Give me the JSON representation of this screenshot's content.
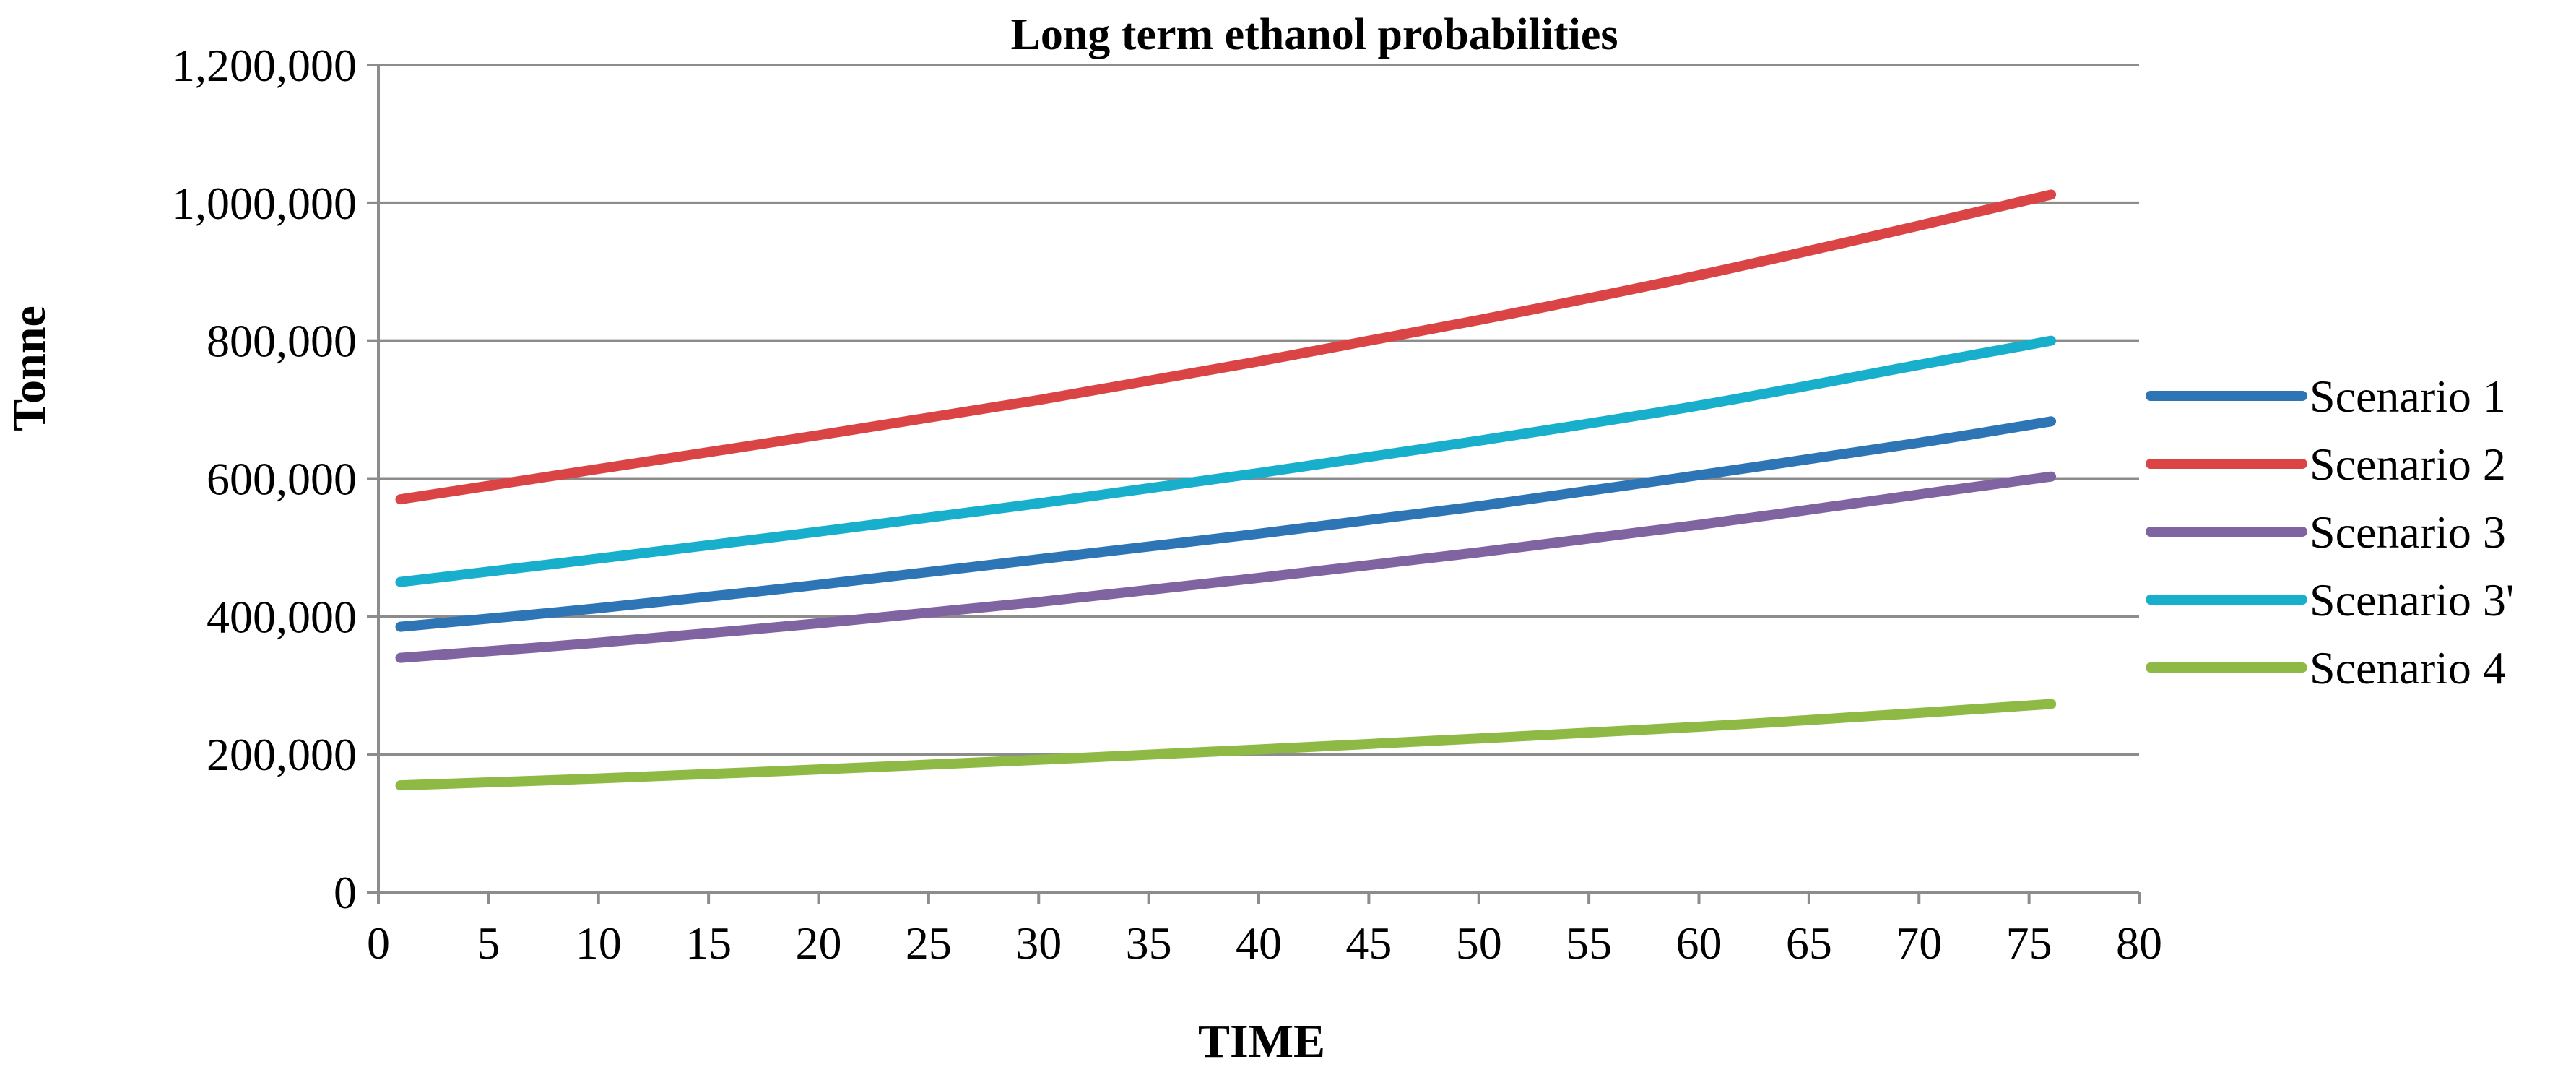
{
  "chart_data": {
    "type": "line",
    "title": "Long term ethanol probabilities",
    "xlabel": "TIME",
    "ylabel": "Tonne",
    "xlim": [
      0,
      80
    ],
    "ylim": [
      0,
      1200000
    ],
    "x_ticks": [
      0,
      5,
      10,
      15,
      20,
      25,
      30,
      35,
      40,
      45,
      50,
      55,
      60,
      65,
      70,
      75,
      80
    ],
    "x_tick_labels": [
      "0",
      "5",
      "10",
      "15",
      "20",
      "25",
      "30",
      "35",
      "40",
      "45",
      "50",
      "55",
      "60",
      "65",
      "70",
      "75",
      "80"
    ],
    "y_ticks": [
      0,
      200000,
      400000,
      600000,
      800000,
      1000000,
      1200000
    ],
    "y_tick_labels": [
      "0",
      "200,000",
      "400,000",
      "600,000",
      "800,000",
      "1,000,000",
      "1,200,000"
    ],
    "grid": "horizontal",
    "legend_position": "right",
    "series": [
      {
        "name": "Scenario 1",
        "color": "#2E75B6",
        "x": [
          1,
          10,
          20,
          30,
          40,
          50,
          60,
          70,
          76
        ],
        "values": [
          385000,
          412000,
          446000,
          483000,
          520000,
          560000,
          605000,
          652000,
          683000
        ]
      },
      {
        "name": "Scenario 2",
        "color": "#DA4444",
        "x": [
          1,
          10,
          20,
          30,
          40,
          50,
          60,
          70,
          76
        ],
        "values": [
          570000,
          614000,
          663000,
          714000,
          770000,
          830000,
          895000,
          967000,
          1012000
        ]
      },
      {
        "name": "Scenario 3",
        "color": "#8064A2",
        "x": [
          1,
          10,
          20,
          30,
          40,
          50,
          60,
          70,
          76
        ],
        "values": [
          340000,
          362000,
          390000,
          421000,
          456000,
          493000,
          533000,
          577000,
          603000
        ]
      },
      {
        "name": "Scenario 3'",
        "color": "#17AFCB",
        "x": [
          1,
          10,
          20,
          30,
          40,
          50,
          60,
          70,
          76
        ],
        "values": [
          450000,
          484000,
          523000,
          564000,
          608000,
          655000,
          706000,
          765000,
          800000
        ]
      },
      {
        "name": "Scenario 4",
        "color": "#8DB944",
        "x": [
          1,
          10,
          20,
          30,
          40,
          50,
          60,
          70,
          76
        ],
        "values": [
          155000,
          165000,
          178000,
          192000,
          207000,
          223000,
          240000,
          260000,
          273000
        ]
      }
    ]
  }
}
